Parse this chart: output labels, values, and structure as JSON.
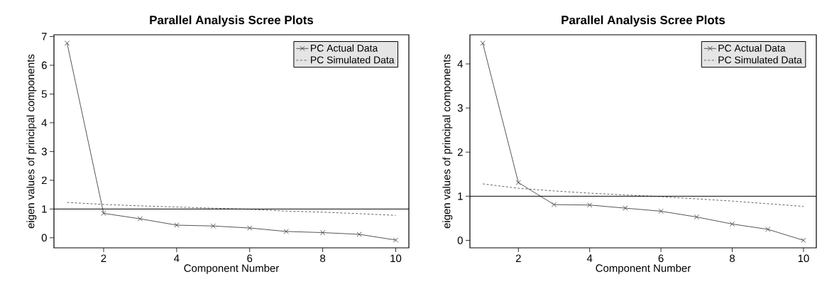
{
  "chart_data": [
    {
      "type": "line",
      "title": "Parallel Analysis Scree Plots",
      "xlabel": "Component Number",
      "ylabel": "eigen values of principal components",
      "x": [
        1,
        2,
        3,
        4,
        5,
        6,
        7,
        8,
        9,
        10
      ],
      "series": [
        {
          "name": "PC  Actual Data",
          "color": "#555555",
          "marker": "cross",
          "line_style": "solid",
          "values": [
            6.77,
            0.85,
            0.66,
            0.44,
            0.41,
            0.34,
            0.22,
            0.18,
            0.12,
            -0.08
          ]
        },
        {
          "name": "PC  Simulated Data",
          "color": "#666666",
          "marker": "none",
          "line_style": "dotted",
          "values": [
            1.23,
            1.16,
            1.11,
            1.07,
            1.03,
            0.99,
            0.93,
            0.89,
            0.84,
            0.78
          ]
        }
      ],
      "ref_lines": [
        {
          "axis": "y",
          "value": 1,
          "color": "#000000"
        }
      ],
      "xlim": [
        0.64,
        10.36
      ],
      "ylim": [
        -0.35,
        7.06
      ],
      "xticks": [
        2,
        4,
        6,
        8,
        10
      ],
      "yticks": [
        0,
        1,
        2,
        3,
        4,
        5,
        6,
        7
      ],
      "legend": "top right"
    },
    {
      "type": "line",
      "title": "Parallel Analysis Scree Plots",
      "xlabel": "Component Number",
      "ylabel": "eigen values of principal components",
      "x": [
        1,
        2,
        3,
        4,
        5,
        6,
        7,
        8,
        9,
        10
      ],
      "series": [
        {
          "name": "PC  Actual Data",
          "color": "#555555",
          "marker": "cross",
          "line_style": "solid",
          "values": [
            4.47,
            1.31,
            0.81,
            0.8,
            0.73,
            0.66,
            0.53,
            0.37,
            0.25,
            0.0
          ]
        },
        {
          "name": "PC  Simulated Data",
          "color": "#666666",
          "marker": "none",
          "line_style": "dotted",
          "values": [
            1.28,
            1.18,
            1.12,
            1.07,
            1.03,
            0.99,
            0.94,
            0.89,
            0.83,
            0.77
          ]
        }
      ],
      "ref_lines": [
        {
          "axis": "y",
          "value": 1,
          "color": "#000000"
        }
      ],
      "xlim": [
        0.64,
        10.36
      ],
      "ylim": [
        -0.17,
        4.66
      ],
      "xticks": [
        2,
        4,
        6,
        8,
        10
      ],
      "yticks": [
        0,
        1,
        2,
        3,
        4
      ],
      "legend": "top right"
    }
  ]
}
